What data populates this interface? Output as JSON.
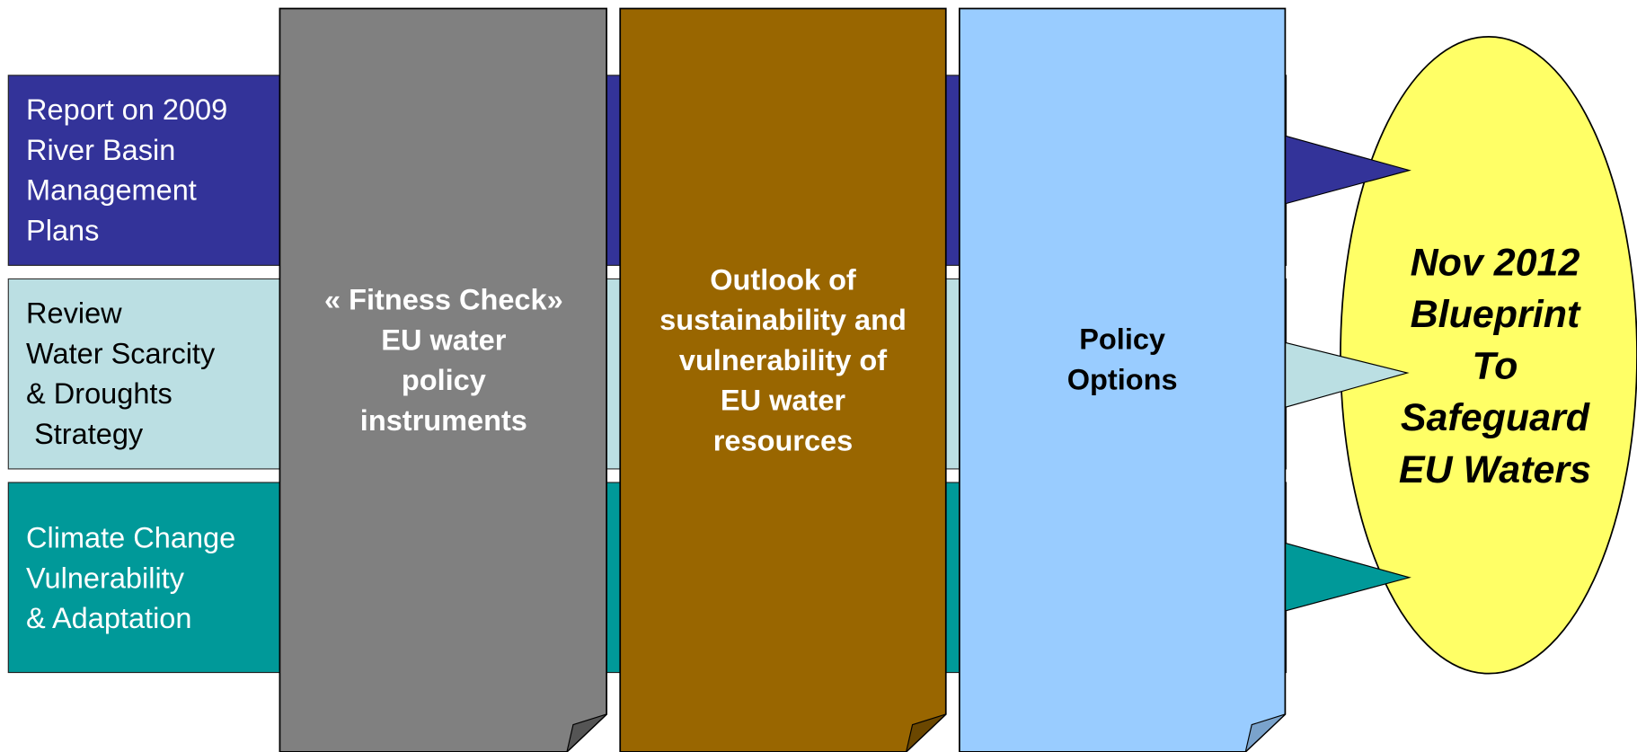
{
  "rows": [
    {
      "lines": [
        "Report on 2009",
        "River Basin",
        "Management",
        "Plans"
      ]
    },
    {
      "lines": [
        "Review",
        "Water Scarcity",
        "& Droughts",
        " Strategy"
      ]
    },
    {
      "lines": [
        "Climate Change",
        "Vulnerability",
        "& Adaptation"
      ]
    }
  ],
  "documents": [
    {
      "lines": [
        "« Fitness Check»",
        "EU water",
        "policy",
        "instruments"
      ]
    },
    {
      "lines": [
        "Outlook of",
        "sustainability and",
        "vulnerability of",
        "EU water",
        "resources"
      ]
    },
    {
      "lines": [
        "Policy",
        "Options"
      ]
    }
  ],
  "target": {
    "lines": [
      "Nov 2012",
      "Blueprint",
      "To",
      "Safeguard",
      "EU Waters"
    ]
  }
}
